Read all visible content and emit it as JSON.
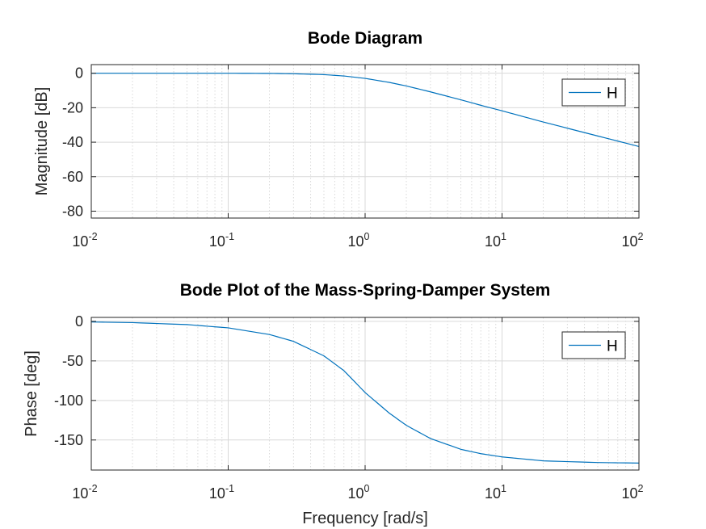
{
  "colors": {
    "line": "#0072BD",
    "grid": "#d9d9d9",
    "axes": "#262626",
    "background": "#ffffff"
  },
  "chart_data": [
    {
      "type": "line",
      "title": "Bode Diagram",
      "xlabel": "",
      "ylabel": "Magnitude [dB]",
      "xscale": "log",
      "xlim": [
        0.01,
        100
      ],
      "ylim": [
        -84,
        5
      ],
      "grid": true,
      "minor_grid_x": true,
      "legend_position": "top-right",
      "x_ticks": [
        {
          "base": "10",
          "exp": "-2"
        },
        {
          "base": "10",
          "exp": "-1"
        },
        {
          "base": "10",
          "exp": "0"
        },
        {
          "base": "10",
          "exp": "1"
        },
        {
          "base": "10",
          "exp": "2"
        }
      ],
      "y_ticks": [
        "0",
        "-20",
        "-40",
        "-60",
        "-80"
      ],
      "series": [
        {
          "name": "H",
          "x": [
            0.01,
            0.02,
            0.05,
            0.1,
            0.2,
            0.3,
            0.5,
            0.7,
            1,
            1.5,
            2,
            3,
            5,
            7,
            10,
            20,
            50,
            100
          ],
          "y": [
            0,
            0,
            0,
            0,
            -0.1,
            -0.3,
            -0.8,
            -1.6,
            -3.0,
            -5.3,
            -7.4,
            -10.8,
            -15.4,
            -18.6,
            -21.8,
            -28.3,
            -36.4,
            -42.5
          ]
        }
      ]
    },
    {
      "type": "line",
      "title": "Bode Plot of the Mass-Spring-Damper System",
      "xlabel": "Frequency [rad/s]",
      "ylabel": "Phase [deg]",
      "xscale": "log",
      "xlim": [
        0.01,
        100
      ],
      "ylim": [
        -188,
        5
      ],
      "grid": true,
      "minor_grid_x": true,
      "legend_position": "top-right",
      "x_ticks": [
        {
          "base": "10",
          "exp": "-2"
        },
        {
          "base": "10",
          "exp": "-1"
        },
        {
          "base": "10",
          "exp": "0"
        },
        {
          "base": "10",
          "exp": "1"
        },
        {
          "base": "10",
          "exp": "2"
        }
      ],
      "y_ticks": [
        "0",
        "-50",
        "-100",
        "-150"
      ],
      "series": [
        {
          "name": "H",
          "x": [
            0.01,
            0.02,
            0.05,
            0.1,
            0.2,
            0.3,
            0.5,
            0.7,
            1,
            1.5,
            2,
            3,
            5,
            7,
            10,
            20,
            50,
            100
          ],
          "y": [
            -0.8,
            -1.6,
            -4.1,
            -8.2,
            -16.6,
            -25.3,
            -43.6,
            -62.3,
            -90.0,
            -116.0,
            -131.5,
            -148.1,
            -161.8,
            -167.3,
            -171.4,
            -176.4,
            -178.5,
            -179.2
          ]
        }
      ]
    }
  ]
}
